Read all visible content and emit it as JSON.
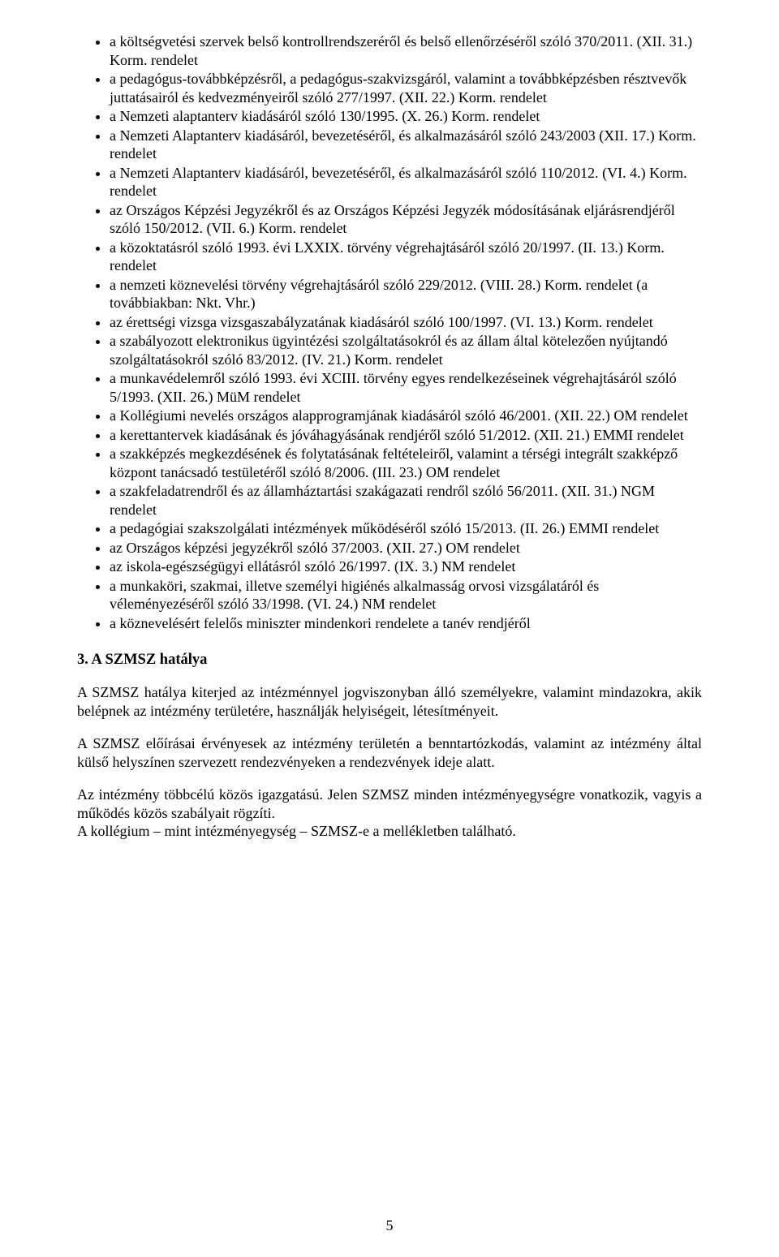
{
  "bullets": [
    "a költségvetési szervek belső kontrollrendszeréről és belső ellenőrzéséről szóló 370/2011. (XII. 31.) Korm. rendelet",
    "a pedagógus-továbbképzésről, a pedagógus-szakvizsgáról, valamint a továbbképzésben résztvevők juttatásairól és kedvezményeiről szóló 277/1997. (XII. 22.) Korm. rendelet",
    "a Nemzeti alaptanterv kiadásáról szóló 130/1995. (X. 26.) Korm. rendelet",
    "a Nemzeti Alaptanterv kiadásáról, bevezetéséről, és alkalmazásáról szóló 243/2003 (XII. 17.) Korm. rendelet",
    "a Nemzeti Alaptanterv kiadásáról, bevezetéséről, és alkalmazásáról szóló 110/2012. (VI. 4.) Korm. rendelet",
    "az Országos Képzési Jegyzékről és az Országos Képzési Jegyzék módosításának eljárásrendjéről szóló 150/2012. (VII. 6.) Korm. rendelet",
    "a közoktatásról szóló 1993. évi LXXIX. törvény végrehajtásáról szóló 20/1997. (II. 13.) Korm. rendelet",
    "a nemzeti köznevelési törvény végrehajtásáról szóló 229/2012. (VIII. 28.) Korm. rendelet (a továbbiakban: Nkt. Vhr.)",
    "az érettségi vizsga vizsgaszabályzatának kiadásáról szóló 100/1997. (VI. 13.) Korm. rendelet",
    "a szabályozott elektronikus ügyintézési szolgáltatásokról és az állam által kötelezően nyújtandó szolgáltatásokról szóló 83/2012. (IV. 21.) Korm. rendelet",
    "a munkavédelemről szóló 1993. évi XCIII. törvény egyes rendelkezéseinek végrehajtásáról szóló 5/1993. (XII. 26.) MüM rendelet",
    "a Kollégiumi nevelés országos alapprogramjának kiadásáról szóló 46/2001. (XII. 22.) OM rendelet",
    "a kerettantervek kiadásának és jóváhagyásának rendjéről szóló 51/2012. (XII. 21.) EMMI rendelet",
    "a szakképzés megkezdésének és folytatásának feltételeiről, valamint a térségi integrált szakképző központ tanácsadó testületéről szóló 8/2006. (III. 23.) OM rendelet",
    "a szakfeladatrendről és az államháztartási szakágazati rendről szóló 56/2011. (XII. 31.) NGM rendelet",
    "a pedagógiai szakszolgálati intézmények működéséről szóló 15/2013. (II. 26.) EMMI rendelet",
    "az Országos képzési jegyzékről szóló 37/2003. (XII. 27.) OM rendelet",
    "az iskola-egészségügyi ellátásról szóló 26/1997. (IX. 3.) NM rendelet",
    "a munkaköri, szakmai, illetve személyi higiénés alkalmasság orvosi vizsgálatáról és véleményezéséről szóló 33/1998. (VI. 24.) NM rendelet",
    "a köznevelésért felelős miniszter mindenkori rendelete a tanév rendjéről"
  ],
  "section_heading": "3. A SZMSZ hatálya",
  "paragraphs": {
    "p1": "A SZMSZ hatálya kiterjed az intézménnyel jogviszonyban álló személyekre, valamint mindazokra, akik belépnek az intézmény területére, használják helyiségeit, létesítményeit.",
    "p2": "A SZMSZ előírásai érvényesek az intézmény területén a benntartózkodás, valamint az intézmény által külső helyszínen szervezett rendezvényeken a rendezvények ideje alatt.",
    "p3": "Az intézmény többcélú közös igazgatású. Jelen SZMSZ minden intézményegységre vonatkozik, vagyis a működés közös szabályait rögzíti.",
    "p4": "A kollégium – mint intézményegység – SZMSZ-e a mellékletben található."
  },
  "justified_indices": [
    13,
    14
  ],
  "page_number": "5"
}
